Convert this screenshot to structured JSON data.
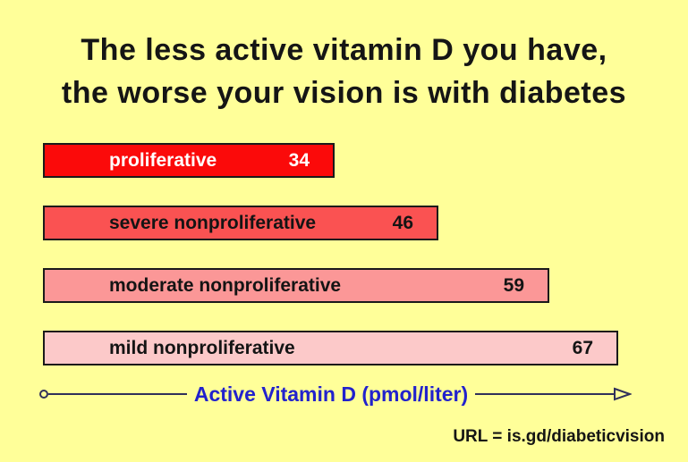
{
  "title": {
    "line1": "The less active vitamin D you have,",
    "line2": "the worse your vision is with diabetes"
  },
  "axis": {
    "label": "Active Vitamin D  (pmol/liter)"
  },
  "footer": {
    "url_text": "URL = is.gd/diabeticvision"
  },
  "colors": {
    "background": "#FFFF99",
    "bar_border": "#1A1A1A",
    "axis_line": "#30305A",
    "axis_text": "#2222CC",
    "title_text": "#151515"
  },
  "chart_data": {
    "type": "bar",
    "orientation": "horizontal",
    "title": "The less active vitamin D you have, the worse your vision is with diabetes",
    "categories": [
      "proliferative",
      "severe nonproliferative",
      "moderate nonproliferative",
      "mild nonproliferative"
    ],
    "values": [
      34,
      46,
      59,
      67
    ],
    "bar_colors": [
      "#FB0A0A",
      "#FA5252",
      "#FB9797",
      "#FCC9C9"
    ],
    "bar_label_colors": [
      "#FFFFFF",
      "#141414",
      "#141414",
      "#141414"
    ],
    "xlabel": "Active Vitamin D  (pmol/liter)",
    "xlim": [
      0,
      75
    ],
    "grid": false,
    "legend": false,
    "value_labels_shown": true,
    "annotation": "URL = is.gd/diabeticvision"
  }
}
